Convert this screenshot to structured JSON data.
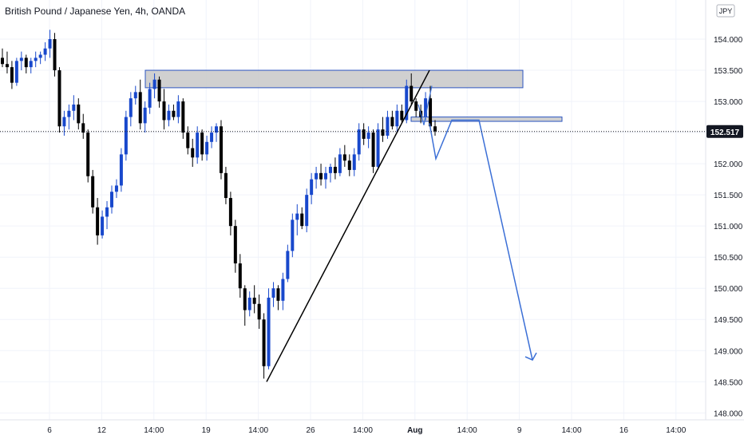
{
  "title": "British Pound / Japanese Yen, 4h, OANDA",
  "currency_badge": "JPY",
  "current_price_label": "152.517",
  "colors": {
    "bull": "#1848cc",
    "bear": "#000000",
    "drawing": "#3b6fd6",
    "zone_fill": "#c8c8c8",
    "zone_border": "#2b55c0",
    "grid": "#f0f3fa",
    "price_tag": "#131722"
  },
  "chart_data": {
    "type": "candlestick",
    "y_axis": {
      "ticks": [
        "154.000",
        "153.500",
        "153.000",
        "152.500",
        "152.000",
        "151.500",
        "151.000",
        "150.500",
        "150.000",
        "149.500",
        "149.000",
        "148.500",
        "148.000"
      ],
      "range": [
        147.94,
        154.5
      ]
    },
    "x_axis": {
      "ticks": [
        "6",
        "12",
        "14:00",
        "19",
        "14:00",
        "26",
        "14:00",
        "Aug",
        "14:00",
        "9",
        "14:00",
        "16",
        "14:00"
      ]
    },
    "current_price": 152.517,
    "candles": [
      [
        153.7,
        153.85,
        153.55,
        153.6
      ],
      [
        153.6,
        153.8,
        153.45,
        153.55
      ],
      [
        153.55,
        153.65,
        153.2,
        153.3
      ],
      [
        153.3,
        153.7,
        153.25,
        153.65
      ],
      [
        153.65,
        153.8,
        153.5,
        153.7
      ],
      [
        153.7,
        153.75,
        153.45,
        153.55
      ],
      [
        153.55,
        153.7,
        153.45,
        153.65
      ],
      [
        153.65,
        153.8,
        153.55,
        153.7
      ],
      [
        153.7,
        153.8,
        153.6,
        153.75
      ],
      [
        153.75,
        153.95,
        153.65,
        153.85
      ],
      [
        153.85,
        154.15,
        153.7,
        154.0
      ],
      [
        154.0,
        154.1,
        153.4,
        153.5
      ],
      [
        153.5,
        153.55,
        152.5,
        152.6
      ],
      [
        152.6,
        152.85,
        152.45,
        152.75
      ],
      [
        152.75,
        152.95,
        152.55,
        152.85
      ],
      [
        152.85,
        153.1,
        152.7,
        152.95
      ],
      [
        152.95,
        153.05,
        152.55,
        152.65
      ],
      [
        152.65,
        152.8,
        152.4,
        152.5
      ],
      [
        152.5,
        152.55,
        151.7,
        151.8
      ],
      [
        151.8,
        151.9,
        151.2,
        151.3
      ],
      [
        151.3,
        151.45,
        150.7,
        150.85
      ],
      [
        150.85,
        151.25,
        150.8,
        151.15
      ],
      [
        151.15,
        151.4,
        150.95,
        151.3
      ],
      [
        151.3,
        151.65,
        151.2,
        151.55
      ],
      [
        151.55,
        151.75,
        151.45,
        151.65
      ],
      [
        151.65,
        152.25,
        151.55,
        152.15
      ],
      [
        152.15,
        152.85,
        152.05,
        152.75
      ],
      [
        152.75,
        153.15,
        152.6,
        153.05
      ],
      [
        153.05,
        153.25,
        152.95,
        153.15
      ],
      [
        153.15,
        153.35,
        152.55,
        152.65
      ],
      [
        152.65,
        153.0,
        152.5,
        152.9
      ],
      [
        152.9,
        153.3,
        152.8,
        153.2
      ],
      [
        153.2,
        153.45,
        153.05,
        153.35
      ],
      [
        153.35,
        153.4,
        152.9,
        153.0
      ],
      [
        153.0,
        153.2,
        152.55,
        152.7
      ],
      [
        152.7,
        152.95,
        152.6,
        152.85
      ],
      [
        152.85,
        152.95,
        152.7,
        152.75
      ],
      [
        152.75,
        153.1,
        152.65,
        153.0
      ],
      [
        153.0,
        153.05,
        152.4,
        152.5
      ],
      [
        152.5,
        152.6,
        152.15,
        152.25
      ],
      [
        152.25,
        152.4,
        151.95,
        152.1
      ],
      [
        152.1,
        152.6,
        152.0,
        152.5
      ],
      [
        152.5,
        152.55,
        152.05,
        152.15
      ],
      [
        152.15,
        152.45,
        152.05,
        152.35
      ],
      [
        152.35,
        152.6,
        152.25,
        152.5
      ],
      [
        152.5,
        152.65,
        152.35,
        152.6
      ],
      [
        152.6,
        152.7,
        151.75,
        151.85
      ],
      [
        151.85,
        151.95,
        151.35,
        151.45
      ],
      [
        151.45,
        151.55,
        150.85,
        151.0
      ],
      [
        151.0,
        151.1,
        150.25,
        150.4
      ],
      [
        150.4,
        150.55,
        149.85,
        150.0
      ],
      [
        150.0,
        150.05,
        149.4,
        149.65
      ],
      [
        149.65,
        149.95,
        149.55,
        149.85
      ],
      [
        149.85,
        150.05,
        149.6,
        149.75
      ],
      [
        149.75,
        149.9,
        149.35,
        149.5
      ],
      [
        149.5,
        149.6,
        148.55,
        148.75
      ],
      [
        148.75,
        150.0,
        148.7,
        149.85
      ],
      [
        149.85,
        150.1,
        149.7,
        150.0
      ],
      [
        150.0,
        150.05,
        149.65,
        149.8
      ],
      [
        149.8,
        150.25,
        149.65,
        150.15
      ],
      [
        150.15,
        150.7,
        150.1,
        150.6
      ],
      [
        150.6,
        151.2,
        150.5,
        151.1
      ],
      [
        151.1,
        151.35,
        150.85,
        151.2
      ],
      [
        151.2,
        151.3,
        150.95,
        151.0
      ],
      [
        151.0,
        151.6,
        150.9,
        151.5
      ],
      [
        151.5,
        151.85,
        151.35,
        151.75
      ],
      [
        151.75,
        151.95,
        151.6,
        151.85
      ],
      [
        151.85,
        152.0,
        151.65,
        151.75
      ],
      [
        151.75,
        151.95,
        151.6,
        151.85
      ],
      [
        151.85,
        152.0,
        151.7,
        151.95
      ],
      [
        151.95,
        152.1,
        151.75,
        151.85
      ],
      [
        151.85,
        152.25,
        151.8,
        152.15
      ],
      [
        152.15,
        152.3,
        151.95,
        152.05
      ],
      [
        152.05,
        152.15,
        151.8,
        151.9
      ],
      [
        151.9,
        152.25,
        151.8,
        152.15
      ],
      [
        152.15,
        152.65,
        152.05,
        152.55
      ],
      [
        152.55,
        152.65,
        152.3,
        152.4
      ],
      [
        152.4,
        152.6,
        152.25,
        152.5
      ],
      [
        152.5,
        152.55,
        151.85,
        151.95
      ],
      [
        151.95,
        152.65,
        151.9,
        152.55
      ],
      [
        152.55,
        152.75,
        152.35,
        152.45
      ],
      [
        152.45,
        152.85,
        152.4,
        152.75
      ],
      [
        152.75,
        152.85,
        152.55,
        152.6
      ],
      [
        152.6,
        152.95,
        152.5,
        152.85
      ],
      [
        152.85,
        152.95,
        152.65,
        152.7
      ],
      [
        152.7,
        153.35,
        152.65,
        153.25
      ],
      [
        153.25,
        153.45,
        152.95,
        153.0
      ],
      [
        153.0,
        153.05,
        152.75,
        152.85
      ],
      [
        152.85,
        152.95,
        152.65,
        152.75
      ],
      [
        152.75,
        153.15,
        152.7,
        153.05
      ],
      [
        153.05,
        153.25,
        152.55,
        152.6
      ],
      [
        152.6,
        152.7,
        152.45,
        152.52
      ]
    ],
    "resistance_zone": {
      "y_top": 153.5,
      "y_bottom": 153.22
    },
    "small_zone": {
      "y_top": 152.75,
      "y_bottom": 152.68
    },
    "trendline": {
      "from_price": 148.5,
      "to_price": 153.5
    },
    "projection_path_prices": [
      152.65,
      152.08,
      152.7,
      152.7,
      152.7,
      148.85
    ],
    "projection_arrow_head": true
  }
}
